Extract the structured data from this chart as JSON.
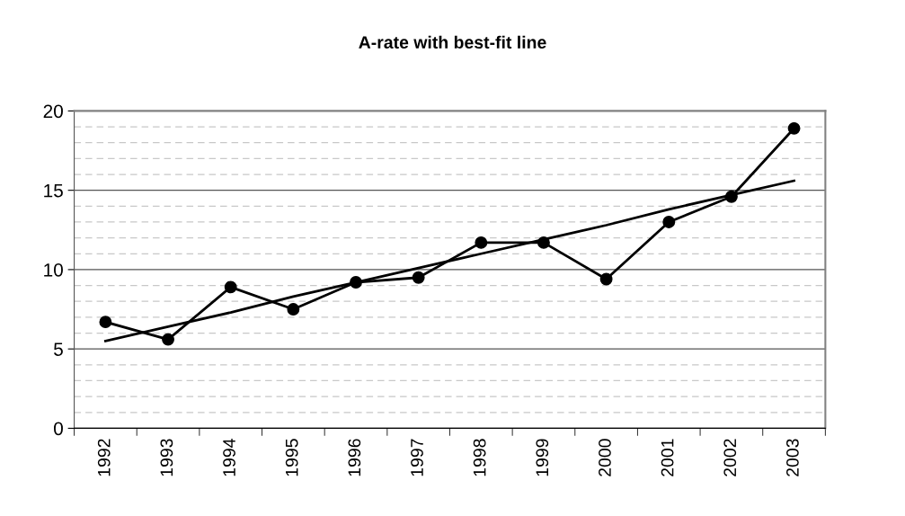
{
  "chart_data": {
    "type": "line",
    "title": "A-rate with best-fit line",
    "categories": [
      "1992",
      "1993",
      "1994",
      "1995",
      "1996",
      "1997",
      "1998",
      "1999",
      "2000",
      "2001",
      "2002",
      "2003"
    ],
    "series": [
      {
        "color": "#000000",
        "marker": "circle",
        "values": [
          6.7,
          5.6,
          8.9,
          7.5,
          9.2,
          9.5,
          11.7,
          11.7,
          9.4,
          13.0,
          14.6,
          18.9
        ]
      },
      {
        "type": "line",
        "color": "#000000",
        "marker": "none",
        "values": [
          5.5,
          6.4,
          7.3,
          8.3,
          9.2,
          10.1,
          11.0,
          11.9,
          12.8,
          13.8,
          14.7,
          15.6
        ]
      }
    ],
    "ylim": [
      0,
      20
    ],
    "yticks": [
      0,
      5,
      10,
      15,
      20
    ],
    "grid": "y"
  }
}
